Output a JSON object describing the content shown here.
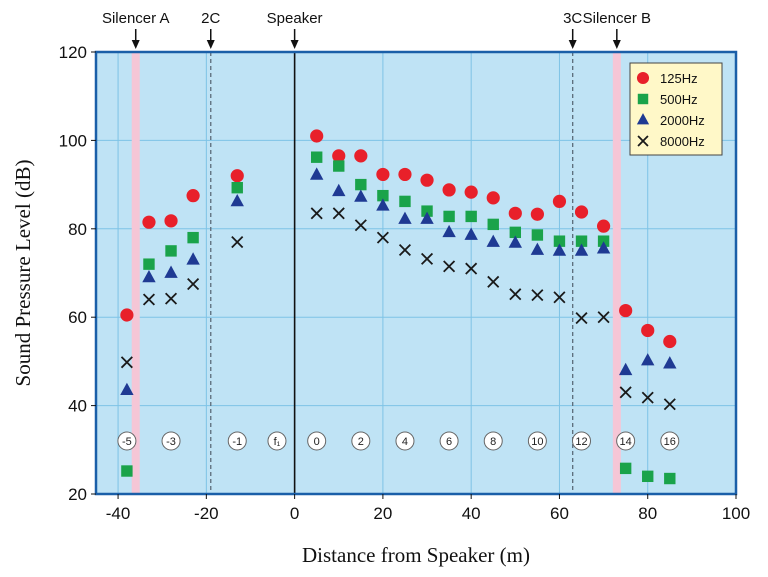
{
  "chart_data": {
    "type": "scatter",
    "xlabel": "Distance from Speaker  (m)",
    "ylabel": "Sound Pressure Level  (dB)",
    "xlim": [
      -45,
      100
    ],
    "ylim": [
      20,
      120
    ],
    "x_ticks": [
      -40,
      -20,
      0,
      20,
      40,
      60,
      80,
      100
    ],
    "y_ticks": [
      20,
      40,
      60,
      80,
      100,
      120
    ],
    "grid": true,
    "legend_position": "top-right",
    "background_color": "#bfe3f5",
    "frame_color": "#1a5fa8",
    "markers": [
      {
        "label": "Silencer A",
        "x": -36,
        "style": "band",
        "arrow": true
      },
      {
        "label": "2C",
        "x": -19,
        "style": "dashed",
        "arrow": true
      },
      {
        "label": "Speaker",
        "x": 0,
        "style": "solid",
        "arrow": true
      },
      {
        "label": "3C",
        "x": 63,
        "style": "dashed",
        "arrow": true
      },
      {
        "label": "Silencer B",
        "x": 73,
        "style": "band",
        "arrow": true
      }
    ],
    "position_labels": [
      {
        "text": "-5",
        "x": -38
      },
      {
        "text": "-3",
        "x": -28
      },
      {
        "text": "-1",
        "x": -13
      },
      {
        "text": "f₁",
        "x": -4
      },
      {
        "text": "0",
        "x": 5
      },
      {
        "text": "2",
        "x": 15
      },
      {
        "text": "4",
        "x": 25
      },
      {
        "text": "6",
        "x": 35
      },
      {
        "text": "8",
        "x": 45
      },
      {
        "text": "10",
        "x": 55
      },
      {
        "text": "12",
        "x": 65
      },
      {
        "text": "14",
        "x": 75
      },
      {
        "text": "16",
        "x": 85
      }
    ],
    "position_label_y": 32,
    "series": [
      {
        "name": "125Hz",
        "marker": "circle",
        "color": "#e8202a",
        "points": [
          [
            -38,
            60.5
          ],
          [
            -33,
            81.5
          ],
          [
            -28,
            81.8
          ],
          [
            -23,
            87.5
          ],
          [
            -13,
            92
          ],
          [
            5,
            101
          ],
          [
            10,
            96.5
          ],
          [
            15,
            96.5
          ],
          [
            20,
            92.3
          ],
          [
            25,
            92.3
          ],
          [
            30,
            91
          ],
          [
            35,
            88.8
          ],
          [
            40,
            88.3
          ],
          [
            45,
            87
          ],
          [
            50,
            83.5
          ],
          [
            55,
            83.3
          ],
          [
            60,
            86.2
          ],
          [
            65,
            83.8
          ],
          [
            70,
            80.6
          ],
          [
            75,
            61.5
          ],
          [
            80,
            57
          ],
          [
            85,
            54.5
          ]
        ]
      },
      {
        "name": "500Hz",
        "marker": "square",
        "color": "#1aa34a",
        "points": [
          [
            -38,
            25.2
          ],
          [
            -33,
            72
          ],
          [
            -28,
            75
          ],
          [
            -23,
            78
          ],
          [
            -13,
            89.3
          ],
          [
            5,
            96.2
          ],
          [
            10,
            94.2
          ],
          [
            15,
            90
          ],
          [
            20,
            87.5
          ],
          [
            25,
            86.2
          ],
          [
            30,
            84
          ],
          [
            35,
            82.8
          ],
          [
            40,
            82.8
          ],
          [
            45,
            81
          ],
          [
            50,
            79.2
          ],
          [
            55,
            78.6
          ],
          [
            60,
            77.2
          ],
          [
            65,
            77.2
          ],
          [
            70,
            77.2
          ],
          [
            75,
            25.8
          ],
          [
            80,
            24
          ],
          [
            85,
            23.5
          ]
        ]
      },
      {
        "name": "2000Hz",
        "marker": "triangle",
        "color": "#1f3a93",
        "points": [
          [
            -38,
            43.5
          ],
          [
            -33,
            69
          ],
          [
            -28,
            70
          ],
          [
            -23,
            73
          ],
          [
            -13,
            86.2
          ],
          [
            5,
            92.2
          ],
          [
            10,
            88.5
          ],
          [
            15,
            87.2
          ],
          [
            20,
            85.2
          ],
          [
            25,
            82.2
          ],
          [
            30,
            82.2
          ],
          [
            35,
            79.2
          ],
          [
            40,
            78.6
          ],
          [
            45,
            77
          ],
          [
            50,
            76.8
          ],
          [
            55,
            75.2
          ],
          [
            60,
            75
          ],
          [
            65,
            75
          ],
          [
            70,
            75.5
          ],
          [
            75,
            48
          ],
          [
            80,
            50.2
          ],
          [
            85,
            49.5
          ]
        ]
      },
      {
        "name": "8000Hz",
        "marker": "cross",
        "color": "#1a1a1a",
        "points": [
          [
            -38,
            49.8
          ],
          [
            -33,
            64
          ],
          [
            -28,
            64.2
          ],
          [
            -23,
            67.5
          ],
          [
            -13,
            77
          ],
          [
            5,
            83.5
          ],
          [
            10,
            83.5
          ],
          [
            15,
            80.8
          ],
          [
            20,
            78
          ],
          [
            25,
            75.2
          ],
          [
            30,
            73.2
          ],
          [
            35,
            71.5
          ],
          [
            40,
            71
          ],
          [
            45,
            68
          ],
          [
            50,
            65.2
          ],
          [
            55,
            65
          ],
          [
            60,
            64.5
          ],
          [
            65,
            59.8
          ],
          [
            70,
            60
          ],
          [
            75,
            43
          ],
          [
            80,
            41.8
          ],
          [
            85,
            40.3
          ]
        ]
      }
    ]
  }
}
